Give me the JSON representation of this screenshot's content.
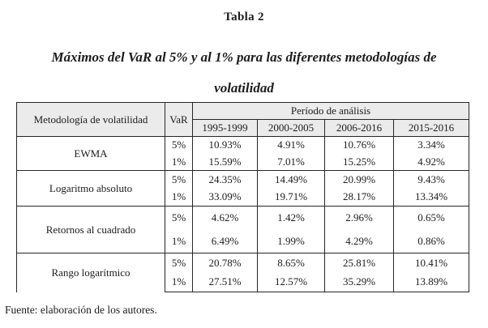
{
  "title": "Tabla 2",
  "subtitle_lines": [
    "Máximos del VaR al 5% y al 1% para las diferentes metodologías de",
    "volatilidad"
  ],
  "table": {
    "method_header": "Metodología de volatilidad",
    "var_header": "VaR",
    "period_header": "Período de análisis",
    "periods": [
      "1995-1999",
      "2000-2005",
      "2006-2016",
      "2015-2016"
    ],
    "groups": [
      {
        "method": "EWMA",
        "rows": [
          {
            "var_level": "5%",
            "values": [
              "10.93%",
              "4.91%",
              "10.76%",
              "3.34%"
            ]
          },
          {
            "var_level": "1%",
            "values": [
              "15.59%",
              "7.01%",
              "15.25%",
              "4.92%"
            ]
          }
        ]
      },
      {
        "method": "Logaritmo absoluto",
        "rows": [
          {
            "var_level": "5%",
            "values": [
              "24.35%",
              "14.49%",
              "20.99%",
              "9.43%"
            ]
          },
          {
            "var_level": "1%",
            "values": [
              "33.09%",
              "19.71%",
              "28.17%",
              "13.34%"
            ]
          }
        ]
      },
      {
        "method": "Retornos al cuadrado",
        "rows": [
          {
            "var_level": "5%",
            "values": [
              "4.62%",
              "1.42%",
              "2.96%",
              "0.65%"
            ]
          },
          {
            "var_level": "1%",
            "values": [
              "6.49%",
              "1.99%",
              "4.29%",
              "0.86%"
            ]
          }
        ]
      },
      {
        "method": "Rango logarítmico",
        "rows": [
          {
            "var_level": "5%",
            "values": [
              "20.78%",
              "8.65%",
              "25.81%",
              "10.41%"
            ]
          },
          {
            "var_level": "1%",
            "values": [
              "27.51%",
              "12.57%",
              "35.29%",
              "13.89%"
            ]
          }
        ]
      }
    ]
  },
  "source": "Fuente: elaboración de los autores.",
  "colors": {
    "header_bg": "#ebebeb",
    "border": "#262626",
    "text": "#1c1c1c"
  }
}
